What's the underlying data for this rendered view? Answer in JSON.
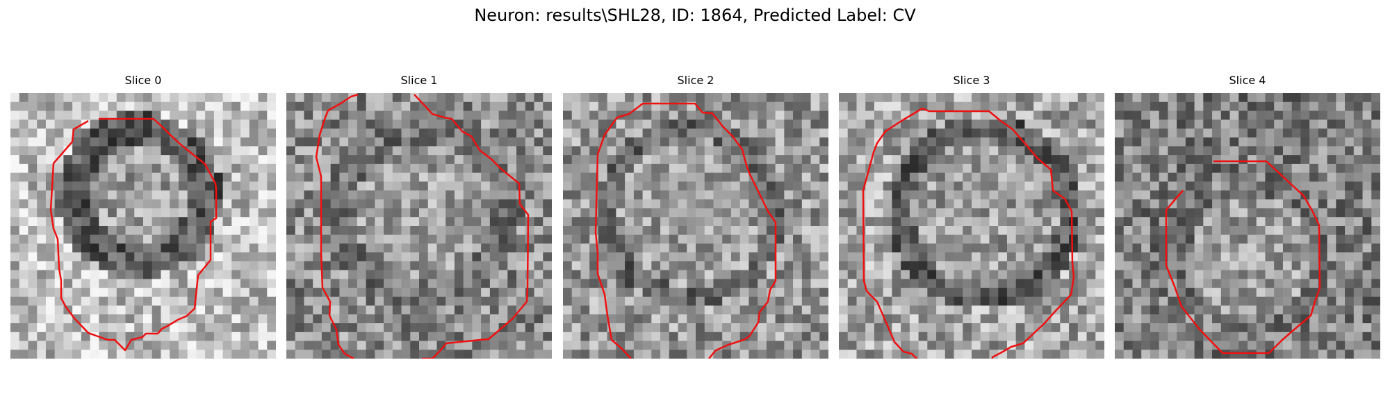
{
  "figure": {
    "title": "Neuron: results\\SHL28, ID: 1864, Predicted Label: CV"
  },
  "panels": [
    {
      "title": "Slice 0"
    },
    {
      "title": "Slice 1"
    },
    {
      "title": "Slice 2"
    },
    {
      "title": "Slice 3"
    },
    {
      "title": "Slice 4"
    }
  ],
  "style": {
    "contour_color": "#ee1111",
    "colormap": "grayscale",
    "image_grid": "30x30"
  }
}
